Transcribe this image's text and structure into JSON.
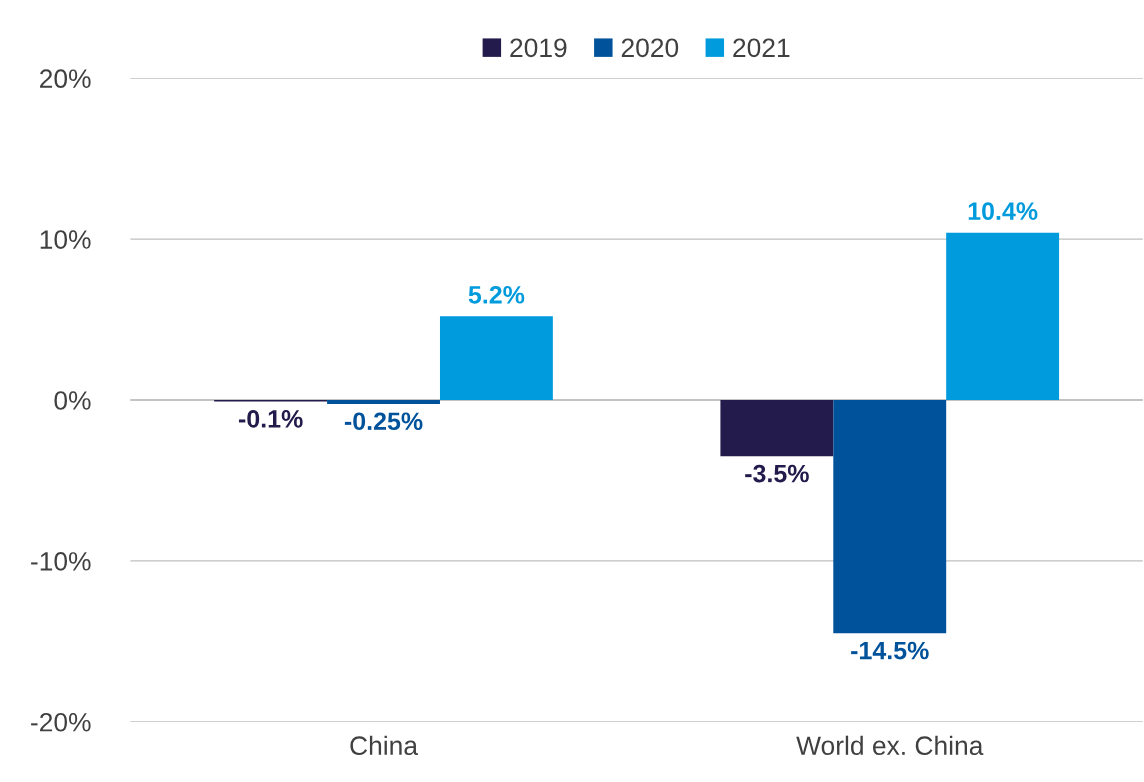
{
  "chart_data": {
    "type": "bar",
    "categories": [
      "China",
      "World ex. China"
    ],
    "series": [
      {
        "name": "2019",
        "color": "#231b4b",
        "values": [
          -0.1,
          -3.5
        ],
        "value_labels": [
          "-0.1%",
          "-3.5%"
        ]
      },
      {
        "name": "2020",
        "color": "#00529b",
        "values": [
          -0.25,
          -14.5
        ],
        "value_labels": [
          "-0.25%",
          "-14.5%"
        ]
      },
      {
        "name": "2021",
        "color": "#009bdc",
        "values": [
          5.2,
          10.4
        ],
        "value_labels": [
          "5.2%",
          "10.4%"
        ]
      }
    ],
    "ylim": [
      -20,
      20
    ],
    "yticks": [
      {
        "value": -20,
        "label": "-20%"
      },
      {
        "value": -10,
        "label": "-10%"
      },
      {
        "value": 0,
        "label": "0%"
      },
      {
        "value": 10,
        "label": "10%"
      },
      {
        "value": 20,
        "label": "20%"
      }
    ],
    "grid": "y",
    "legend": "top"
  }
}
